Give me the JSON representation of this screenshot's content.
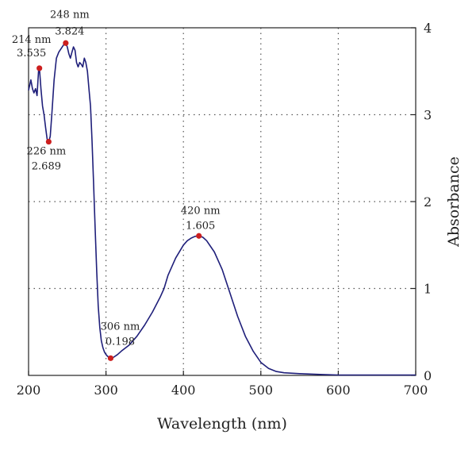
{
  "chart_data": {
    "type": "line",
    "title": "",
    "xlabel": "Wavelength (nm)",
    "ylabel": "Absorbance",
    "xlim": [
      200,
      700
    ],
    "ylim": [
      0,
      4
    ],
    "x_ticks": [
      200,
      300,
      400,
      500,
      600,
      700
    ],
    "x_tick_labels": [
      "200",
      "300",
      "400",
      "500",
      "600",
      "700"
    ],
    "y_ticks": [
      0,
      1,
      2,
      3,
      4
    ],
    "y_tick_labels": [
      "0",
      "1",
      "2",
      "3",
      "4"
    ],
    "y_axis_side": "right",
    "grid": "dotted",
    "line_color": "#1f1f7a",
    "marker_color": "#cc1f1f",
    "series": [
      {
        "x": [
          200,
          203,
          205,
          207,
          209,
          211,
          213,
          214,
          216,
          218,
          220,
          222,
          224,
          226,
          228,
          230,
          233,
          236,
          239,
          242,
          245,
          248,
          250,
          252,
          254,
          256,
          258,
          260,
          262,
          264,
          266,
          268,
          270,
          272,
          274,
          276,
          278,
          280,
          282,
          284,
          286,
          288,
          290,
          292,
          294,
          296,
          298,
          300,
          302,
          304,
          306,
          310,
          315,
          320,
          330,
          340,
          350,
          360,
          370,
          375,
          380,
          390,
          400,
          405,
          410,
          415,
          420,
          425,
          430,
          440,
          450,
          460,
          470,
          480,
          490,
          500,
          510,
          520,
          530,
          550,
          580,
          600,
          650,
          700
        ],
        "y": [
          3.28,
          3.4,
          3.3,
          3.25,
          3.3,
          3.22,
          3.52,
          3.535,
          3.3,
          3.1,
          3.0,
          2.85,
          2.72,
          2.689,
          2.75,
          3.0,
          3.4,
          3.65,
          3.72,
          3.76,
          3.8,
          3.824,
          3.78,
          3.7,
          3.65,
          3.72,
          3.78,
          3.74,
          3.6,
          3.55,
          3.6,
          3.58,
          3.55,
          3.65,
          3.6,
          3.5,
          3.3,
          3.1,
          2.7,
          2.2,
          1.7,
          1.2,
          0.8,
          0.55,
          0.4,
          0.32,
          0.27,
          0.24,
          0.22,
          0.205,
          0.198,
          0.21,
          0.24,
          0.28,
          0.35,
          0.45,
          0.58,
          0.73,
          0.9,
          1.0,
          1.15,
          1.35,
          1.5,
          1.55,
          1.58,
          1.6,
          1.605,
          1.59,
          1.55,
          1.42,
          1.22,
          0.95,
          0.68,
          0.45,
          0.28,
          0.15,
          0.08,
          0.045,
          0.03,
          0.02,
          0.01,
          0.005,
          0.005,
          0.005
        ]
      }
    ],
    "annotations": [
      {
        "x": 214,
        "y": 3.535,
        "label1": "214 nm",
        "label2": "3.535"
      },
      {
        "x": 248,
        "y": 3.824,
        "label1": "248 nm",
        "label2": "3.824"
      },
      {
        "x": 226,
        "y": 2.689,
        "label1": "226 nm",
        "label2": "2.689"
      },
      {
        "x": 306,
        "y": 0.198,
        "label1": "306 nm",
        "label2": "0.198"
      },
      {
        "x": 420,
        "y": 1.605,
        "label1": "420 nm",
        "label2": "1.605"
      }
    ]
  }
}
